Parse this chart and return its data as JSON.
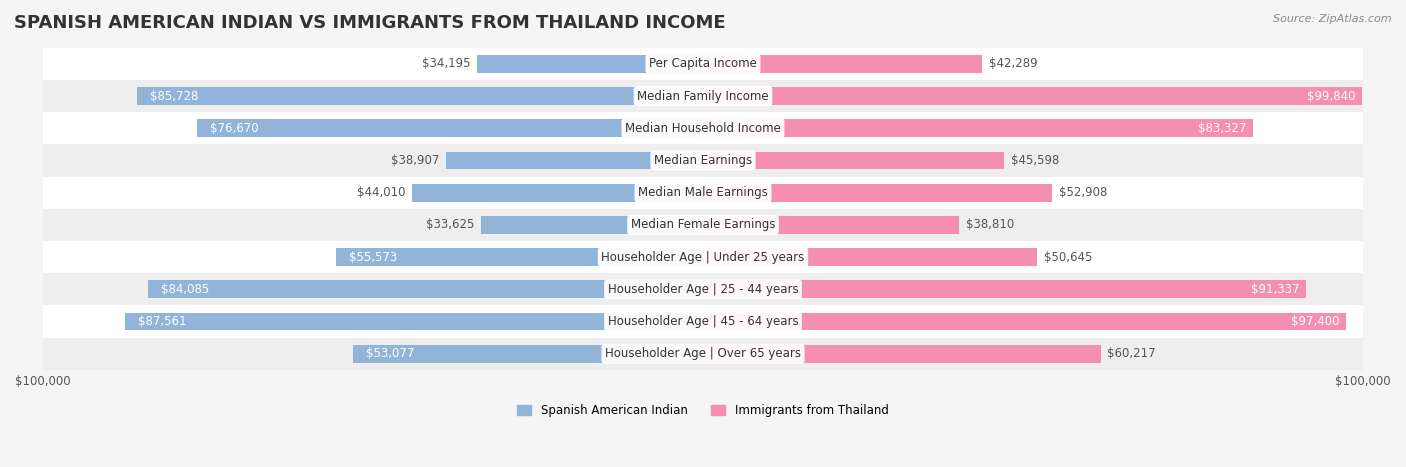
{
  "title": "SPANISH AMERICAN INDIAN VS IMMIGRANTS FROM THAILAND INCOME",
  "source": "Source: ZipAtlas.com",
  "categories": [
    "Per Capita Income",
    "Median Family Income",
    "Median Household Income",
    "Median Earnings",
    "Median Male Earnings",
    "Median Female Earnings",
    "Householder Age | Under 25 years",
    "Householder Age | 25 - 44 years",
    "Householder Age | 45 - 64 years",
    "Householder Age | Over 65 years"
  ],
  "left_values": [
    34195,
    85728,
    76670,
    38907,
    44010,
    33625,
    55573,
    84085,
    87561,
    53077
  ],
  "right_values": [
    42289,
    99840,
    83327,
    45598,
    52908,
    38810,
    50645,
    91337,
    97400,
    60217
  ],
  "left_labels": [
    "$34,195",
    "$85,728",
    "$76,670",
    "$38,907",
    "$44,010",
    "$33,625",
    "$55,573",
    "$84,085",
    "$87,561",
    "$53,077"
  ],
  "right_labels": [
    "$42,289",
    "$99,840",
    "$83,327",
    "$45,598",
    "$52,908",
    "$38,810",
    "$50,645",
    "$91,337",
    "$97,400",
    "$60,217"
  ],
  "max_value": 100000,
  "left_color": "#92b4d9",
  "right_color": "#f48fb1",
  "left_legend": "Spanish American Indian",
  "right_legend": "Immigrants from Thailand",
  "left_axis_label": "$100,000",
  "right_axis_label": "$100,000",
  "title_fontsize": 13,
  "label_fontsize": 8.5,
  "category_fontsize": 8.5,
  "bar_height": 0.55,
  "bg_color": "#f5f5f5",
  "row_colors": [
    "#ffffff",
    "#eeeeee"
  ],
  "title_color": "#333333",
  "source_color": "#888888"
}
